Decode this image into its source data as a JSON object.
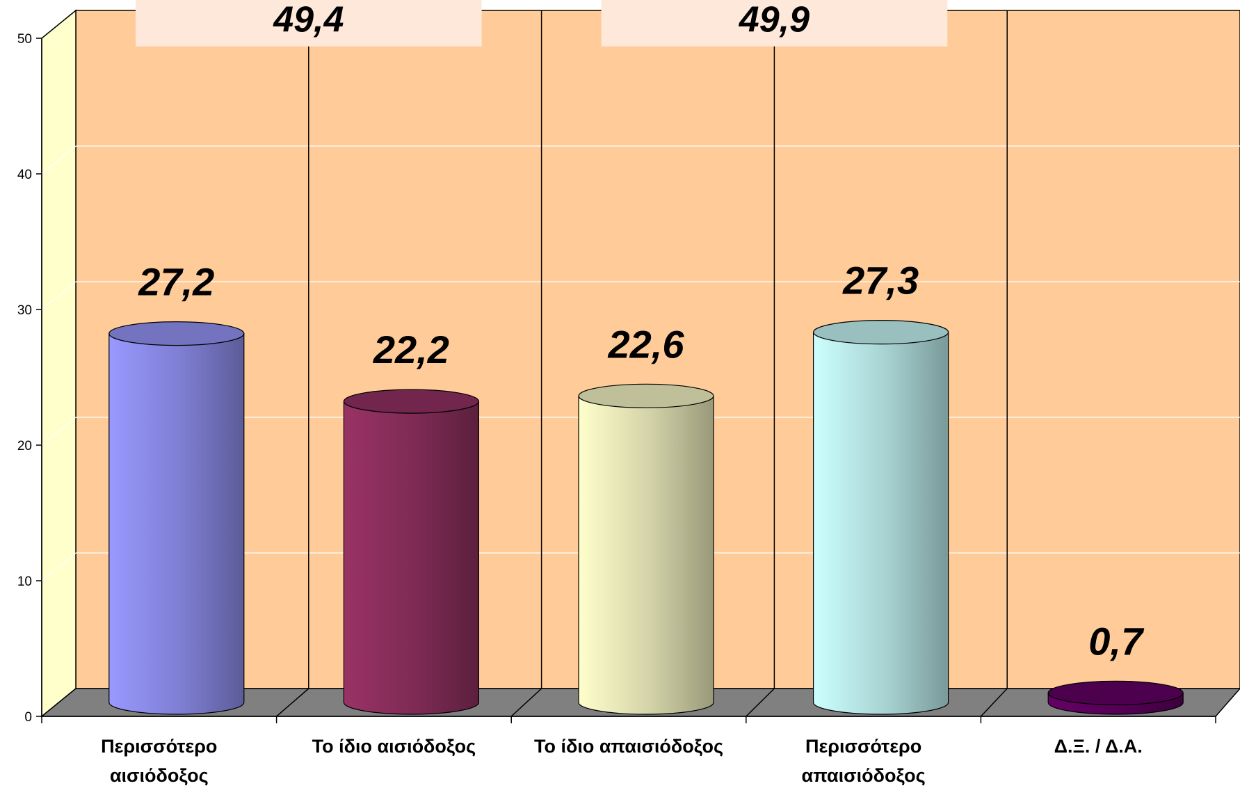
{
  "chart_data": {
    "type": "bar",
    "bar_shape": "cylinder",
    "three_d": true,
    "categories": [
      [
        "Περισσότερο",
        "αισιόδοξος"
      ],
      [
        "Το ίδιο αισιόδοξος"
      ],
      [
        "Το ίδιο απαισιόδοξος"
      ],
      [
        "Περισσότερο",
        "απαισιόδοξος"
      ],
      [
        "Δ.Ξ. / Δ.Α."
      ]
    ],
    "values": [
      27.2,
      22.2,
      22.6,
      27.3,
      0.7
    ],
    "value_labels": [
      "27,2",
      "22,2",
      "22,6",
      "27,3",
      "0,7"
    ],
    "bar_colors": [
      "#9999ff",
      "#993366",
      "#ffffcc",
      "#ccffff",
      "#660066"
    ],
    "group_totals": [
      {
        "label": "49,4",
        "spans_categories": [
          0,
          1
        ]
      },
      {
        "label": "49,9",
        "spans_categories": [
          2,
          3
        ]
      }
    ],
    "ylim": [
      0,
      50
    ],
    "yticks": [
      0,
      10,
      20,
      30,
      40,
      50
    ],
    "grid": true,
    "xlabel": "",
    "ylabel": "",
    "title": "",
    "colors": {
      "back_wall": "#ffcc99",
      "side_wall": "#ffffcc",
      "floor": "#808080",
      "group_box": "#fde8da"
    }
  }
}
